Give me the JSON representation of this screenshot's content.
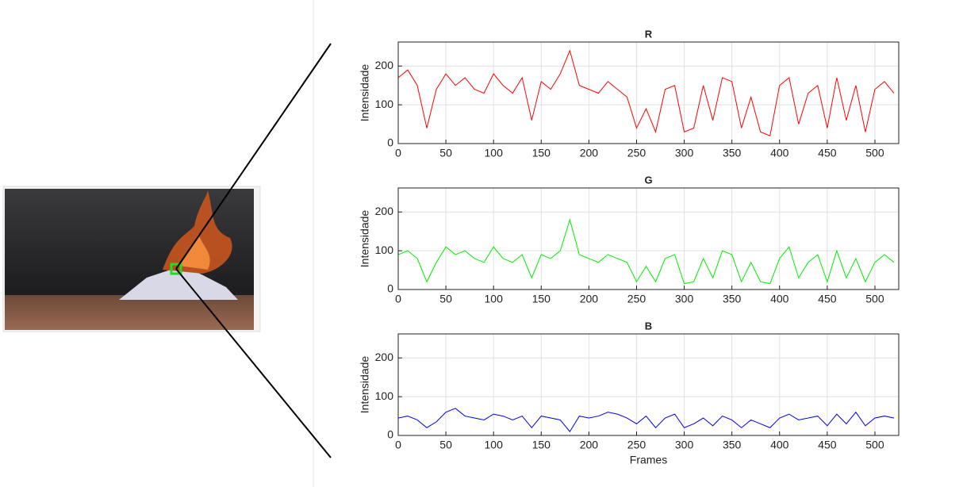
{
  "chart_data": [
    {
      "type": "line",
      "title": "R",
      "ylabel": "Intensidade",
      "color": "#ff0000",
      "x": [
        0,
        10,
        20,
        30,
        40,
        50,
        60,
        70,
        80,
        90,
        100,
        110,
        120,
        130,
        140,
        150,
        160,
        170,
        180,
        190,
        200,
        210,
        220,
        230,
        240,
        250,
        260,
        270,
        280,
        290,
        300,
        310,
        320,
        330,
        340,
        350,
        360,
        370,
        380,
        390,
        400,
        410,
        420,
        430,
        440,
        450,
        460,
        470,
        480,
        490,
        500,
        510,
        520
      ],
      "values": [
        170,
        190,
        150,
        40,
        140,
        180,
        150,
        170,
        140,
        130,
        180,
        150,
        130,
        170,
        60,
        160,
        140,
        180,
        240,
        150,
        140,
        130,
        160,
        140,
        120,
        40,
        90,
        30,
        140,
        150,
        30,
        40,
        150,
        60,
        170,
        160,
        40,
        120,
        30,
        20,
        150,
        170,
        50,
        130,
        150,
        40,
        170,
        60,
        150,
        30,
        140,
        160,
        130
      ],
      "xlim": [
        0,
        525
      ],
      "ylim": [
        0,
        262
      ],
      "xticks": [
        0,
        50,
        100,
        150,
        200,
        250,
        300,
        350,
        400,
        450,
        500
      ],
      "yticks": [
        0,
        100,
        200
      ],
      "grid": true
    },
    {
      "type": "line",
      "title": "G",
      "ylabel": "Intensidade",
      "color": "#00ee00",
      "x": [
        0,
        10,
        20,
        30,
        40,
        50,
        60,
        70,
        80,
        90,
        100,
        110,
        120,
        130,
        140,
        150,
        160,
        170,
        180,
        190,
        200,
        210,
        220,
        230,
        240,
        250,
        260,
        270,
        280,
        290,
        300,
        310,
        320,
        330,
        340,
        350,
        360,
        370,
        380,
        390,
        400,
        410,
        420,
        430,
        440,
        450,
        460,
        470,
        480,
        490,
        500,
        510,
        520
      ],
      "values": [
        90,
        100,
        80,
        20,
        70,
        110,
        90,
        100,
        80,
        70,
        110,
        80,
        70,
        90,
        30,
        90,
        80,
        100,
        180,
        90,
        80,
        70,
        90,
        80,
        70,
        20,
        60,
        20,
        80,
        90,
        15,
        20,
        80,
        30,
        100,
        90,
        20,
        70,
        20,
        15,
        80,
        110,
        30,
        70,
        90,
        20,
        100,
        30,
        80,
        20,
        70,
        90,
        70
      ],
      "xlim": [
        0,
        525
      ],
      "ylim": [
        0,
        262
      ],
      "xticks": [
        0,
        50,
        100,
        150,
        200,
        250,
        300,
        350,
        400,
        450,
        500
      ],
      "yticks": [
        0,
        100,
        200
      ],
      "grid": true
    },
    {
      "type": "line",
      "title": "B",
      "ylabel": "Intensidade",
      "xlabel": "Frames",
      "color": "#0000ee",
      "x": [
        0,
        10,
        20,
        30,
        40,
        50,
        60,
        70,
        80,
        90,
        100,
        110,
        120,
        130,
        140,
        150,
        160,
        170,
        180,
        190,
        200,
        210,
        220,
        230,
        240,
        250,
        260,
        270,
        280,
        290,
        300,
        310,
        320,
        330,
        340,
        350,
        360,
        370,
        380,
        390,
        400,
        410,
        420,
        430,
        440,
        450,
        460,
        470,
        480,
        490,
        500,
        510,
        520
      ],
      "values": [
        45,
        50,
        40,
        20,
        35,
        60,
        70,
        50,
        45,
        40,
        55,
        50,
        40,
        50,
        20,
        50,
        45,
        40,
        10,
        50,
        45,
        50,
        60,
        55,
        45,
        30,
        50,
        20,
        45,
        55,
        20,
        30,
        45,
        25,
        50,
        40,
        20,
        40,
        30,
        20,
        45,
        55,
        40,
        45,
        50,
        25,
        55,
        30,
        60,
        25,
        45,
        50,
        45
      ],
      "xlim": [
        0,
        525
      ],
      "ylim": [
        0,
        262
      ],
      "xticks": [
        0,
        50,
        100,
        150,
        200,
        250,
        300,
        350,
        400,
        450,
        500
      ],
      "yticks": [
        0,
        100,
        200
      ],
      "grid": true
    }
  ]
}
